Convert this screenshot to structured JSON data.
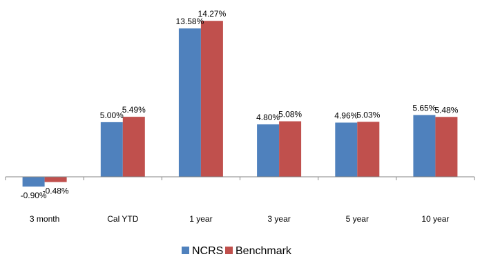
{
  "chart_data": {
    "type": "bar",
    "title": "",
    "xlabel": "",
    "ylabel": "",
    "categories": [
      "3 month",
      "Cal YTD",
      "1 year",
      "3 year",
      "5 year",
      "10 year"
    ],
    "series": [
      {
        "name": "NCRS",
        "color": "#4F81BD",
        "values": [
          -0.9,
          5.0,
          13.58,
          4.8,
          4.96,
          5.65
        ],
        "labels": [
          "-0.90%",
          "5.00%",
          "13.58%",
          "4.80%",
          "4.96%",
          "5.65%"
        ]
      },
      {
        "name": "Benchmark",
        "color": "#C0504D",
        "values": [
          -0.48,
          5.49,
          14.27,
          5.08,
          5.03,
          5.48
        ],
        "labels": [
          "-0.48%",
          "5.49%",
          "14.27%",
          "5.08%",
          "5.03%",
          "5.48%"
        ]
      }
    ],
    "ylim": [
      -1.5,
      14.5
    ],
    "value_axis_visible": false,
    "grid": false,
    "legend_position": "bottom"
  }
}
